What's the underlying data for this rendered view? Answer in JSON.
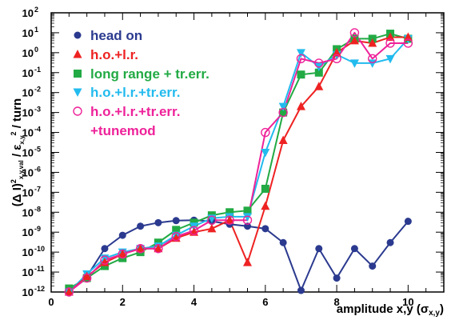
{
  "chart_data": {
    "type": "line",
    "title": "",
    "xlabel": "amplitude x,y (σx,y)",
    "ylabel": "(Δ I)²x,y,val / εx,y² / turn",
    "xlim": [
      0,
      11
    ],
    "ylim_log10": [
      -12,
      2
    ],
    "y_scale": "log",
    "grid": false,
    "legend_position": "top-left",
    "x_ticks": [
      "0",
      "2",
      "4",
      "6",
      "8",
      "10"
    ],
    "y_tick_exponents": [
      "2",
      "1",
      "0",
      "-1",
      "-2",
      "-3",
      "-4",
      "-5",
      "-6",
      "-7",
      "-8",
      "-9",
      "-10",
      "-11",
      "-12"
    ],
    "series": [
      {
        "name": "head on",
        "color": "#2b3a8f",
        "marker": "circle",
        "x": [
          0.5,
          1,
          1.5,
          2,
          2.5,
          3,
          3.5,
          4,
          4.5,
          5,
          5.5,
          6,
          6.5,
          7,
          7.5,
          8,
          8.5,
          9,
          9.5,
          10
        ],
        "y": [
          "1e-12",
          "6e-12",
          "1.5e-10",
          "7e-10",
          "2e-9",
          "3e-9",
          "3.8e-9",
          "4e-9",
          "3.5e-9",
          "2.5e-9",
          "2e-9",
          "1.5e-9",
          "3e-10",
          "1.2e-12",
          "1.5e-10",
          "5e-12",
          "1.5e-10",
          "2e-11",
          "3e-10",
          "3.5e-9"
        ]
      },
      {
        "name": "h.o.+l.r.",
        "color": "#ee2222",
        "marker": "triangle",
        "x": [
          0.5,
          1,
          1.5,
          2,
          2.5,
          3,
          3.5,
          4,
          4.5,
          5,
          5.5,
          6,
          6.5,
          7,
          7.5,
          8,
          8.5,
          9,
          9.5,
          10
        ],
        "y": [
          "1e-12",
          "6e-12",
          "3e-11",
          "8e-11",
          "1.5e-10",
          "1.5e-10",
          "5e-10",
          "1e-9",
          "1.5e-9",
          "4e-9",
          "3e-11",
          "2e-8",
          "4e-5",
          "2e-3",
          "2e-2",
          "1",
          "4",
          "3",
          "6",
          "6"
        ]
      },
      {
        "name": "long range + tr.err.",
        "color": "#22aa44",
        "marker": "square",
        "x": [
          0.5,
          1,
          1.5,
          2,
          2.5,
          3,
          3.5,
          4,
          4.5,
          5,
          5.5,
          6,
          6.5,
          7,
          7.5,
          8,
          8.5,
          9,
          9.5,
          10
        ],
        "y": [
          "1.5e-12",
          "5e-12",
          "2e-11",
          "5e-11",
          "1e-10",
          "3e-10",
          "1.3e-9",
          "3e-9",
          "7e-9",
          "1e-8",
          "1.2e-8",
          "1.5e-7",
          "1e-3",
          "8e-2",
          "1e-1",
          "1.5",
          "5",
          "5",
          "9",
          "5"
        ]
      },
      {
        "name": "h.o.+l.r.+tr.err.",
        "color": "#22bbee",
        "marker": "triangle-down",
        "x": [
          0.5,
          1,
          1.5,
          2,
          2.5,
          3,
          3.5,
          4,
          4.5,
          5,
          5.5,
          6,
          6.5,
          7,
          7.5,
          8,
          8.5,
          9,
          9.5,
          10
        ],
        "y": [
          "1e-12",
          "8e-12",
          "5e-11",
          "1e-10",
          "1.5e-10",
          "2e-10",
          "7e-10",
          "2e-9",
          "5e-9",
          "6e-9",
          "6e-9",
          "1e-5",
          "2e-3",
          "1",
          "2e-1",
          "8e-1",
          "3e-1",
          "3e-1",
          "5e-1",
          "5"
        ]
      },
      {
        "name": "h.o.+l.r.+tr.err.",
        "name_line2": "+tunemod",
        "color": "#ee2299",
        "marker": "circle-open",
        "x": [
          0.5,
          1,
          1.5,
          2,
          2.5,
          3,
          3.5,
          4,
          4.5,
          5,
          5.5,
          6,
          6.5,
          7,
          7.5,
          8,
          8.5,
          9,
          9.5,
          10
        ],
        "y": [
          "1e-12",
          "5e-12",
          "4e-11",
          "8e-11",
          "1.5e-10",
          "1.5e-10",
          "6e-10",
          "1.2e-9",
          "4e-9",
          "4e-9",
          "4e-9",
          "1e-4",
          "1e-3",
          "5e-1",
          "3e-1",
          "5e-1",
          "1e1",
          "5e-1",
          "3",
          "3"
        ]
      }
    ]
  }
}
